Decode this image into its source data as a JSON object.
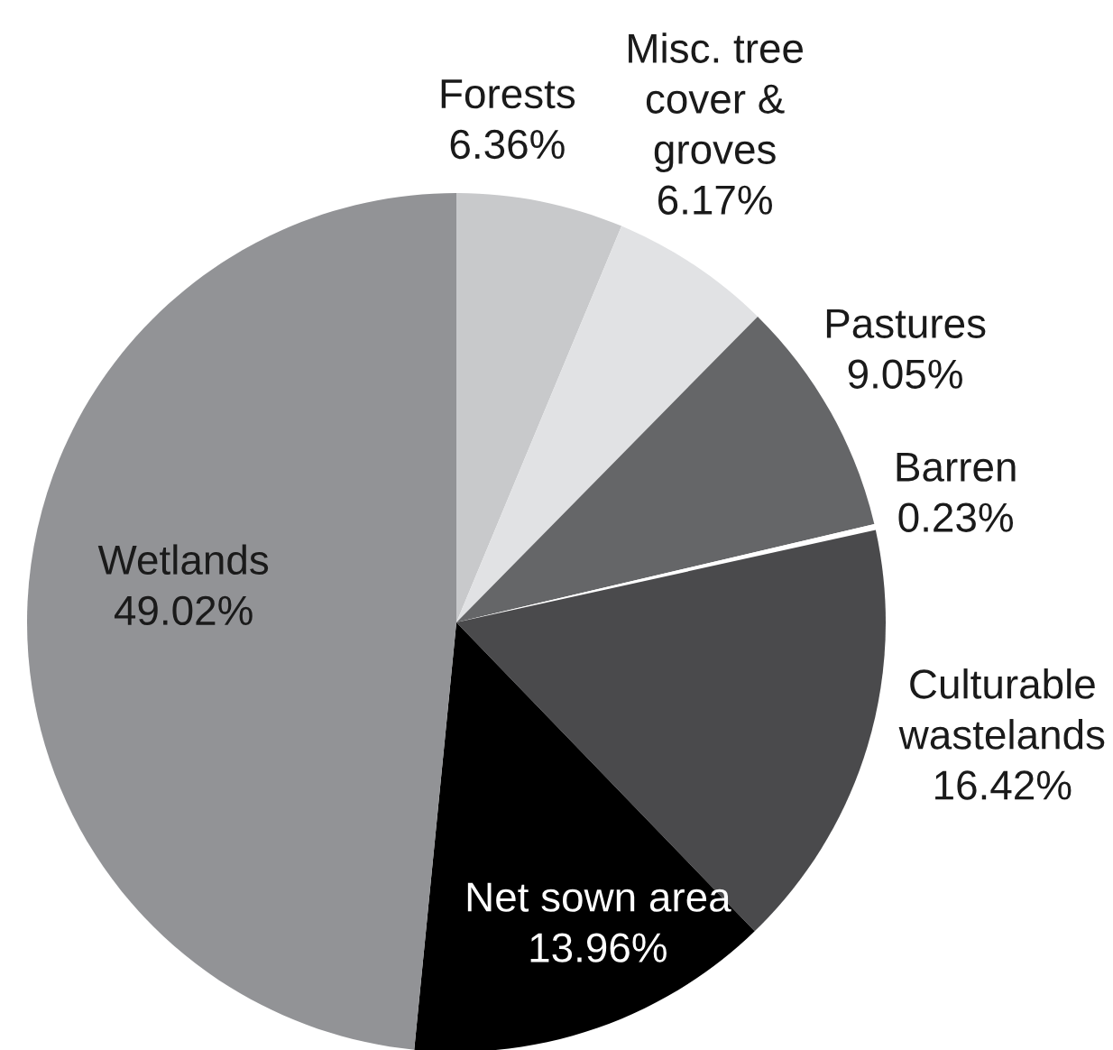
{
  "chart_data": {
    "type": "pie",
    "categories": [
      "Forests",
      "Misc. tree\ncover &\ngroves",
      "Pastures",
      "Barren",
      "Culturable\nwastelands",
      "Net sown area",
      "Wetlands"
    ],
    "values": [
      6.36,
      6.17,
      9.05,
      0.23,
      16.42,
      13.96,
      49.02
    ],
    "value_labels": [
      "6.36%",
      "6.17%",
      "9.05%",
      "0.23%",
      "16.42%",
      "13.96%",
      "49.02%"
    ],
    "colors": [
      "#c8c9cb",
      "#e1e2e4",
      "#656668",
      "#ffffff",
      "#4a4a4c",
      "#000000",
      "#929396"
    ]
  }
}
